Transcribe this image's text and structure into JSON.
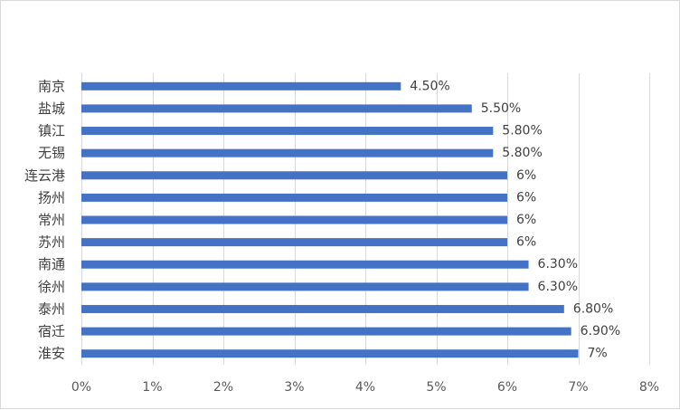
{
  "chart_data": {
    "type": "bar",
    "orientation": "horizontal",
    "title": "",
    "xlabel": "",
    "ylabel": "",
    "categories": [
      "南京",
      "盐城",
      "镇江",
      "无锡",
      "连云港",
      "扬州",
      "常州",
      "苏州",
      "南通",
      "徐州",
      "泰州",
      "宿迁",
      "淮安"
    ],
    "values": [
      4.5,
      5.5,
      5.8,
      5.8,
      6.0,
      6.0,
      6.0,
      6.0,
      6.3,
      6.3,
      6.8,
      6.9,
      7.0
    ],
    "data_labels": [
      "4.50%",
      "5.50%",
      "5.80%",
      "5.80%",
      "6%",
      "6%",
      "6%",
      "6%",
      "6.30%",
      "6.30%",
      "6.80%",
      "6.90%",
      "7%"
    ],
    "xlim": [
      0,
      8
    ],
    "x_ticks": [
      0,
      1,
      2,
      3,
      4,
      5,
      6,
      7,
      8
    ],
    "x_tick_labels": [
      "0%",
      "1%",
      "2%",
      "3%",
      "4%",
      "5%",
      "6%",
      "7%",
      "8%"
    ],
    "grid": "vertical",
    "legend": "none",
    "colors": {
      "bar": "#4472c4",
      "grid": "#d9d9d9",
      "text": "#404040",
      "tick_text": "#595959"
    }
  }
}
